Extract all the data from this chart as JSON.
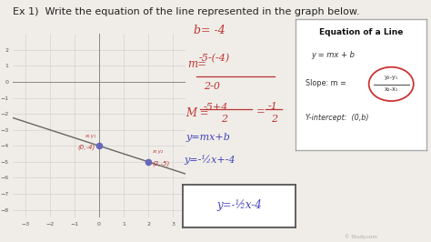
{
  "bg_color": "#f0ede8",
  "title": "Ex 1)  Write the equation of the line represented in the graph below.",
  "title_fontsize": 8.0,
  "graph": {
    "xlim": [
      -3.5,
      3.5
    ],
    "ylim": [
      -8.5,
      3.0
    ],
    "xticks": [
      -3,
      -2,
      -1,
      0,
      1,
      2,
      3
    ],
    "yticks": [
      -8,
      -7,
      -6,
      -5,
      -4,
      -3,
      -2,
      -1,
      0,
      1,
      2
    ],
    "line_color": "#666666",
    "point1": [
      0,
      -4
    ],
    "point2": [
      2,
      -5
    ],
    "point_color": "#6666bb",
    "point_size": 20
  },
  "annotations": {
    "xy1_label": "x₁ y₁",
    "point1_label": "(0,-4)",
    "xy2_label": "x₂ y₂",
    "point2_label": "(2,-5)",
    "ink_color": "#bb3333",
    "blue_color": "#4444bb",
    "dark_color": "#333333"
  },
  "box": {
    "title": "Equation of a Line",
    "line1": "y = mx + b",
    "slope_frac_num": "y₂-y₁",
    "slope_frac_den": "x₂-x₁",
    "yint_label": "Y-intercept:  (0,b)",
    "ellipse_color": "#cc3333"
  },
  "watermark": "© Study.com"
}
